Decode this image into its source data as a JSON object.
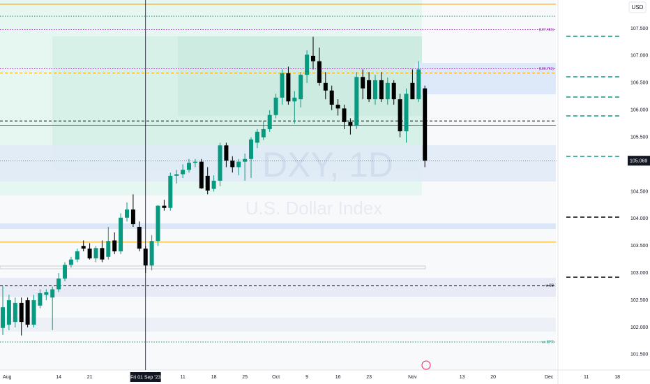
{
  "chart_data": {
    "type": "candlestick",
    "currency": "USD",
    "watermark": "DXY, 1D",
    "watermark_subtitle": "U.S. Dollar Index",
    "up_color": "#089981",
    "down_color": "#000000",
    "grid": false,
    "x": [
      0,
      1,
      2,
      3,
      4,
      5,
      6,
      7,
      8,
      9,
      10,
      11,
      12,
      13,
      14,
      15,
      16,
      17,
      18,
      19,
      20,
      21,
      22,
      23,
      24,
      25,
      26,
      27,
      28,
      29,
      30,
      31,
      32,
      33,
      34,
      35,
      36,
      37,
      38,
      39,
      40,
      41,
      42,
      43,
      44,
      45,
      46,
      47,
      48,
      49,
      50,
      51,
      52,
      53,
      54,
      55,
      56,
      57,
      58,
      59,
      60,
      61,
      62,
      63,
      64,
      65,
      66,
      67,
      68
    ],
    "open": [
      101.99,
      102.05,
      102.1,
      102.45,
      102.5,
      102.05,
      102.4,
      102.6,
      102.55,
      102.7,
      102.9,
      103.15,
      103.25,
      103.5,
      103.45,
      103.27,
      103.46,
      103.3,
      103.6,
      103.4,
      104.02,
      104.17,
      103.85,
      103.45,
      103.14,
      103.59,
      104.24,
      104.2,
      104.79,
      104.82,
      104.9,
      105.03,
      105.05,
      104.79,
      104.55,
      104.7,
      105.35,
      105.07,
      104.95,
      105.05,
      105.1,
      105.4,
      105.5,
      105.65,
      105.91,
      106.23,
      106.68,
      106.16,
      106.2,
      106.65,
      107.0,
      106.9,
      106.5,
      106.36,
      106.1,
      106.03,
      105.78,
      105.71,
      106.61,
      106.55,
      106.2,
      106.55,
      106.2,
      106.5,
      106.2,
      105.61,
      106.5,
      106.2,
      106.4
    ],
    "high": [
      102.76,
      102.6,
      102.55,
      102.55,
      102.55,
      102.6,
      102.7,
      102.7,
      102.75,
      103.0,
      103.2,
      103.3,
      103.45,
      103.6,
      103.55,
      103.5,
      103.6,
      103.85,
      103.75,
      104.1,
      104.3,
      104.45,
      103.95,
      103.5,
      103.7,
      104.25,
      104.35,
      104.85,
      104.9,
      105.0,
      105.1,
      105.1,
      105.1,
      104.95,
      104.8,
      105.4,
      105.4,
      105.15,
      105.1,
      105.2,
      105.5,
      105.65,
      105.8,
      106.0,
      106.3,
      106.75,
      106.8,
      106.35,
      106.7,
      107.1,
      107.35,
      107.15,
      106.7,
      106.45,
      106.2,
      106.1,
      105.85,
      106.7,
      106.75,
      106.7,
      106.65,
      106.7,
      106.6,
      106.55,
      106.3,
      106.4,
      106.75,
      106.9,
      106.45
    ],
    "low": [
      101.86,
      101.95,
      102.0,
      101.85,
      102.0,
      102.0,
      102.35,
      102.5,
      101.95,
      102.65,
      102.85,
      103.1,
      103.2,
      103.4,
      103.25,
      103.2,
      103.2,
      103.25,
      103.35,
      103.35,
      103.95,
      103.85,
      103.4,
      103.0,
      103.05,
      103.5,
      104.15,
      104.15,
      104.65,
      104.75,
      104.85,
      104.95,
      104.55,
      104.45,
      104.5,
      104.6,
      104.95,
      104.85,
      104.8,
      104.7,
      104.75,
      105.3,
      105.45,
      105.6,
      105.85,
      106.1,
      106.1,
      105.75,
      106.05,
      106.5,
      106.75,
      106.45,
      106.2,
      106.0,
      105.9,
      105.65,
      105.55,
      105.65,
      106.2,
      106.15,
      106.1,
      106.15,
      106.1,
      106.1,
      105.5,
      105.4,
      106.2,
      106.15,
      104.95
    ],
    "close": [
      102.37,
      102.5,
      102.45,
      102.1,
      102.05,
      102.5,
      102.63,
      102.65,
      102.7,
      102.9,
      103.15,
      103.25,
      103.4,
      103.45,
      103.27,
      103.46,
      103.25,
      103.59,
      103.4,
      104.02,
      104.17,
      103.9,
      103.45,
      103.14,
      103.59,
      104.24,
      104.2,
      104.79,
      104.82,
      104.9,
      105.03,
      105.05,
      104.56,
      104.52,
      104.7,
      105.35,
      105.07,
      104.95,
      105.05,
      105.1,
      105.46,
      105.6,
      105.65,
      105.91,
      106.23,
      106.68,
      106.16,
      106.23,
      106.65,
      107.02,
      106.9,
      106.5,
      106.36,
      106.1,
      106.03,
      105.78,
      105.71,
      106.61,
      106.4,
      106.2,
      106.55,
      106.2,
      106.5,
      106.2,
      105.61,
      106.3,
      106.2,
      106.75,
      105.069
    ],
    "last_price": 105.069,
    "xlim": [
      -0.45,
      104.27
    ],
    "ylim": [
      101.215,
      108.027
    ],
    "xticks": [
      {
        "value": 0,
        "label": "Aug"
      },
      {
        "value": 9,
        "label": "14"
      },
      {
        "value": 14,
        "label": "21"
      },
      {
        "value": 29,
        "label": "11"
      },
      {
        "value": 34,
        "label": "18"
      },
      {
        "value": 39,
        "label": "25"
      },
      {
        "value": 44,
        "label": "Oct"
      },
      {
        "value": 49,
        "label": "9"
      },
      {
        "value": 54,
        "label": "16"
      },
      {
        "value": 59,
        "label": "23"
      },
      {
        "value": 66,
        "label": "Nov"
      },
      {
        "value": 74,
        "label": "13"
      },
      {
        "value": 79,
        "label": "20"
      },
      {
        "value": 88,
        "label": "Dec"
      },
      {
        "value": 94,
        "label": "11"
      },
      {
        "value": 99,
        "label": "18"
      }
    ],
    "crosshair": {
      "value": 23,
      "label": "Fri 01 Sep '23"
    },
    "yticks": [
      {
        "value": 107.5,
        "label": "107.500"
      },
      {
        "value": 107.0,
        "label": "107.000"
      },
      {
        "value": 106.5,
        "label": "106.500"
      },
      {
        "value": 106.0,
        "label": "106.000"
      },
      {
        "value": 105.5,
        "label": "105.500"
      },
      {
        "value": 104.5,
        "label": "104.500"
      },
      {
        "value": 104.0,
        "label": "104.000"
      },
      {
        "value": 103.5,
        "label": "103.500"
      },
      {
        "value": 103.0,
        "label": "103.000"
      },
      {
        "value": 102.5,
        "label": "102.500"
      },
      {
        "value": 102.0,
        "label": "102.000"
      },
      {
        "value": 101.5,
        "label": "101.500"
      }
    ],
    "levels": [
      {
        "price": 107.95,
        "color": "#f7a600",
        "style": "solid"
      },
      {
        "price": 107.73,
        "color": "#089981",
        "style": "dotted"
      },
      {
        "price": 107.481,
        "color": "#9c27b0",
        "style": "dotted",
        "label": "(107.481)"
      },
      {
        "price": 106.761,
        "color": "#9c27b0",
        "style": "dotted",
        "label": "(106.761)"
      },
      {
        "price": 106.683,
        "color": "#f7a600",
        "style": "dashed"
      },
      {
        "price": 105.8,
        "color": "#000000",
        "style": "dashed"
      },
      {
        "price": 105.72,
        "color": "#787b86",
        "style": "solid"
      },
      {
        "price": 103.57,
        "color": "#f7a600",
        "style": "solid"
      },
      {
        "price": 102.77,
        "color": "#000000",
        "style": "dashed",
        "label": "w BB"
      },
      {
        "price": 101.73,
        "color": "#089981",
        "style": "dotted",
        "label": "vw BPR"
      }
    ]
  }
}
